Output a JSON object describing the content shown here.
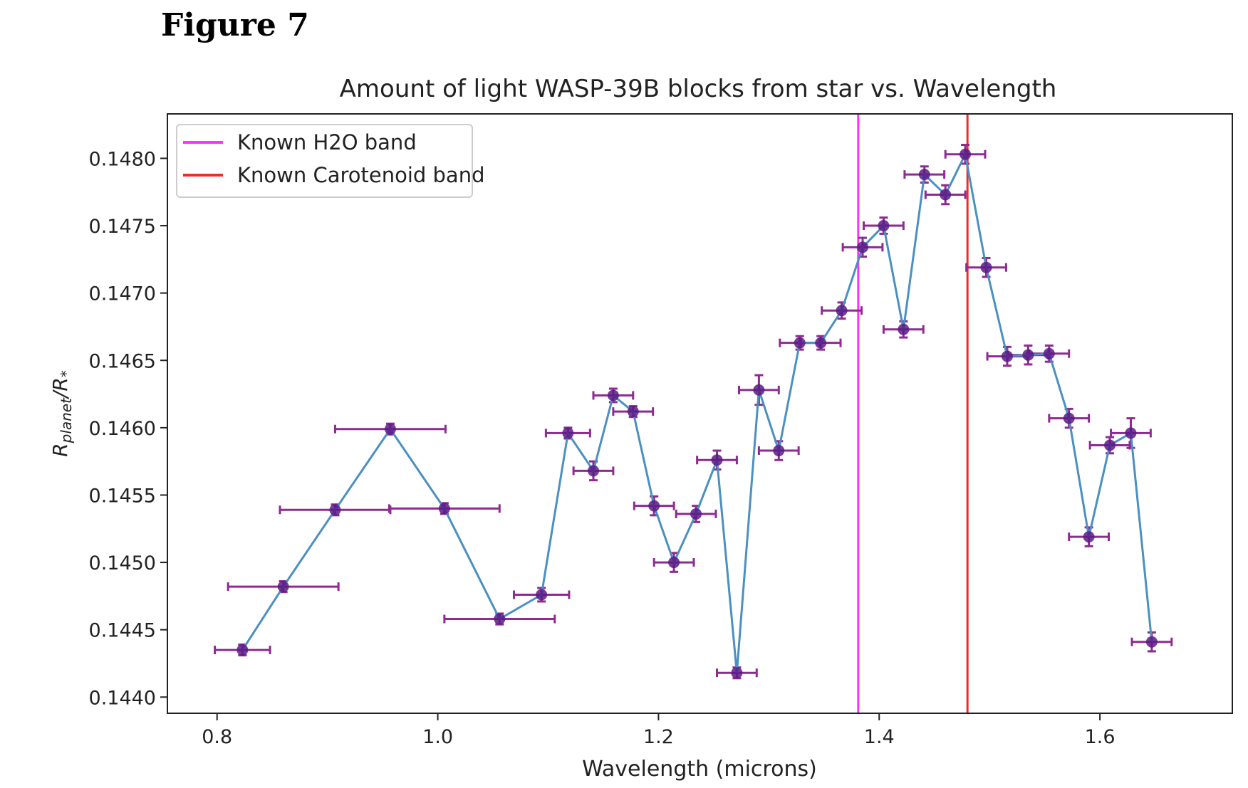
{
  "figure_label": "Figure 7",
  "chart_data": {
    "type": "scatter",
    "title": "Amount of light WASP-39B blocks from star vs. Wavelength",
    "xlabel": "Wavelength (microns)",
    "ylabel": "R_planet/R_*",
    "ylabel_main": "R",
    "ylabel_sub1": "planet",
    "ylabel_mid": "/R",
    "ylabel_sub2": "*",
    "xlim": [
      0.755,
      1.72
    ],
    "ylim": [
      0.14388,
      0.14833
    ],
    "x_ticks": [
      0.8,
      1.0,
      1.2,
      1.4,
      1.6
    ],
    "x_tick_labels": [
      "0.8",
      "1.0",
      "1.2",
      "1.4",
      "1.6"
    ],
    "y_ticks": [
      0.144,
      0.1445,
      0.145,
      0.1455,
      0.146,
      0.1465,
      0.147,
      0.1475,
      0.148
    ],
    "y_tick_labels": [
      "0.1440",
      "0.1445",
      "0.1450",
      "0.1455",
      "0.1460",
      "0.1465",
      "0.1470",
      "0.1475",
      "0.1480"
    ],
    "grid": false,
    "legend_position": "top-left",
    "legend": [
      {
        "label": "Known H2O band",
        "color": "#ff33ff"
      },
      {
        "label": "Known Carotenoid band",
        "color": "#e8302a"
      }
    ],
    "vlines": [
      {
        "x": 1.381,
        "color": "#ff33ff"
      },
      {
        "x": 1.48,
        "color": "#e8302a"
      }
    ],
    "line_color": "#4a90c0",
    "marker_color": "#5a1a86",
    "error_color": "#8e2a92",
    "points": [
      {
        "x": 0.823,
        "y": 0.14435,
        "xerr": 0.025,
        "yerr": 4e-05
      },
      {
        "x": 0.86,
        "y": 0.14482,
        "xerr": 0.05,
        "yerr": 4e-05
      },
      {
        "x": 0.907,
        "y": 0.14539,
        "xerr": 0.05,
        "yerr": 4e-05
      },
      {
        "x": 0.957,
        "y": 0.14599,
        "xerr": 0.05,
        "yerr": 4e-05
      },
      {
        "x": 1.006,
        "y": 0.1454,
        "xerr": 0.05,
        "yerr": 4e-05
      },
      {
        "x": 1.056,
        "y": 0.14458,
        "xerr": 0.05,
        "yerr": 4e-05
      },
      {
        "x": 1.094,
        "y": 0.14476,
        "xerr": 0.025,
        "yerr": 5e-05
      },
      {
        "x": 1.118,
        "y": 0.14596,
        "xerr": 0.02,
        "yerr": 4e-05
      },
      {
        "x": 1.141,
        "y": 0.14568,
        "xerr": 0.018,
        "yerr": 7e-05
      },
      {
        "x": 1.159,
        "y": 0.14624,
        "xerr": 0.018,
        "yerr": 5e-05
      },
      {
        "x": 1.177,
        "y": 0.14612,
        "xerr": 0.018,
        "yerr": 4e-05
      },
      {
        "x": 1.196,
        "y": 0.14542,
        "xerr": 0.018,
        "yerr": 7e-05
      },
      {
        "x": 1.214,
        "y": 0.145,
        "xerr": 0.018,
        "yerr": 7e-05
      },
      {
        "x": 1.234,
        "y": 0.14536,
        "xerr": 0.018,
        "yerr": 6e-05
      },
      {
        "x": 1.253,
        "y": 0.14576,
        "xerr": 0.018,
        "yerr": 7e-05
      },
      {
        "x": 1.271,
        "y": 0.14418,
        "xerr": 0.018,
        "yerr": 4e-05
      },
      {
        "x": 1.291,
        "y": 0.14628,
        "xerr": 0.018,
        "yerr": 0.00011
      },
      {
        "x": 1.309,
        "y": 0.14583,
        "xerr": 0.018,
        "yerr": 7e-05
      },
      {
        "x": 1.328,
        "y": 0.14663,
        "xerr": 0.018,
        "yerr": 5e-05
      },
      {
        "x": 1.347,
        "y": 0.14663,
        "xerr": 0.018,
        "yerr": 5e-05
      },
      {
        "x": 1.366,
        "y": 0.14687,
        "xerr": 0.018,
        "yerr": 6e-05
      },
      {
        "x": 1.385,
        "y": 0.14734,
        "xerr": 0.018,
        "yerr": 7e-05
      },
      {
        "x": 1.404,
        "y": 0.1475,
        "xerr": 0.018,
        "yerr": 6e-05
      },
      {
        "x": 1.422,
        "y": 0.14673,
        "xerr": 0.018,
        "yerr": 6e-05
      },
      {
        "x": 1.441,
        "y": 0.14788,
        "xerr": 0.018,
        "yerr": 6e-05
      },
      {
        "x": 1.46,
        "y": 0.14773,
        "xerr": 0.018,
        "yerr": 7e-05
      },
      {
        "x": 1.478,
        "y": 0.14803,
        "xerr": 0.018,
        "yerr": 7e-05
      },
      {
        "x": 1.497,
        "y": 0.14719,
        "xerr": 0.018,
        "yerr": 7e-05
      },
      {
        "x": 1.516,
        "y": 0.14653,
        "xerr": 0.018,
        "yerr": 7e-05
      },
      {
        "x": 1.535,
        "y": 0.14654,
        "xerr": 0.018,
        "yerr": 7e-05
      },
      {
        "x": 1.554,
        "y": 0.14655,
        "xerr": 0.018,
        "yerr": 6e-05
      },
      {
        "x": 1.572,
        "y": 0.14607,
        "xerr": 0.018,
        "yerr": 7e-05
      },
      {
        "x": 1.59,
        "y": 0.14519,
        "xerr": 0.018,
        "yerr": 7e-05
      },
      {
        "x": 1.609,
        "y": 0.14587,
        "xerr": 0.018,
        "yerr": 6e-05
      },
      {
        "x": 1.628,
        "y": 0.14596,
        "xerr": 0.018,
        "yerr": 0.00011
      },
      {
        "x": 1.647,
        "y": 0.14441,
        "xerr": 0.018,
        "yerr": 7e-05
      }
    ]
  }
}
